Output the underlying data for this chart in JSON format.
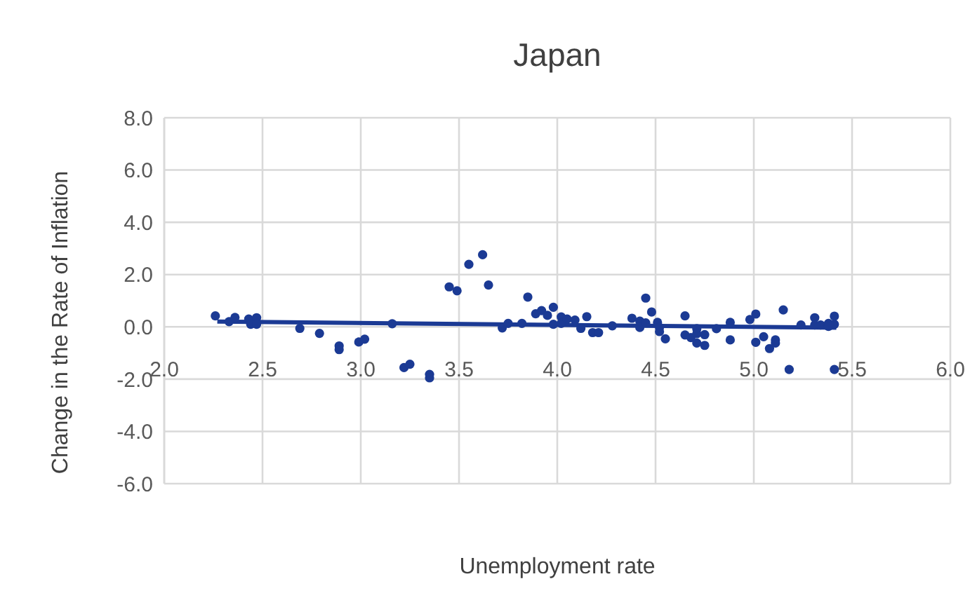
{
  "chart_data": {
    "type": "scatter",
    "title": "Japan",
    "xlabel": "Unemployment rate",
    "ylabel": "Change in the Rate of Inflation",
    "xlim": [
      2.0,
      6.0
    ],
    "xticks": [
      {
        "value": 2.0,
        "label": "2.0"
      },
      {
        "value": 2.5,
        "label": "2.5"
      },
      {
        "value": 3.0,
        "label": "3.0"
      },
      {
        "value": 3.5,
        "label": "3.5"
      },
      {
        "value": 4.0,
        "label": "4.0"
      },
      {
        "value": 4.5,
        "label": "4.5"
      },
      {
        "value": 5.0,
        "label": "5.0"
      },
      {
        "value": 5.5,
        "label": "5.5"
      },
      {
        "value": 6.0,
        "label": "6.0"
      }
    ],
    "ylim": [
      -6.0,
      8.0
    ],
    "yticks": [
      {
        "value": -6.0,
        "label": "-6.0"
      },
      {
        "value": -4.0,
        "label": "-4.0"
      },
      {
        "value": -2.0,
        "label": "-2.0"
      },
      {
        "value": 0.0,
        "label": "0.0"
      },
      {
        "value": 2.0,
        "label": "2.0"
      },
      {
        "value": 4.0,
        "label": "4.0"
      },
      {
        "value": 6.0,
        "label": "6.0"
      },
      {
        "value": 8.0,
        "label": "8.0"
      }
    ],
    "grid": true,
    "legend": false,
    "series": [
      {
        "type": "scatter",
        "marker": "circle",
        "color": "#1b3a94",
        "x": [
          2.26,
          2.33,
          2.36,
          2.43,
          2.44,
          2.47,
          2.47,
          2.69,
          2.79,
          2.89,
          2.89,
          2.99,
          3.02,
          3.16,
          3.22,
          3.25,
          3.35,
          3.35,
          3.45,
          3.49,
          3.55,
          3.62,
          3.65,
          3.72,
          3.75,
          3.82,
          3.85,
          3.89,
          3.92,
          3.95,
          3.98,
          3.98,
          4.02,
          4.02,
          4.05,
          4.09,
          4.12,
          4.15,
          4.18,
          4.21,
          4.28,
          4.38,
          4.42,
          4.42,
          4.45,
          4.45,
          4.48,
          4.51,
          4.52,
          4.52,
          4.55,
          4.65,
          4.65,
          4.68,
          4.71,
          4.71,
          4.71,
          4.75,
          4.75,
          4.81,
          4.88,
          4.88,
          4.98,
          5.01,
          5.01,
          5.05,
          5.08,
          5.11,
          5.11,
          5.15,
          5.18,
          5.24,
          5.31,
          5.31,
          5.34,
          5.38,
          5.38,
          5.41,
          5.41,
          5.41
        ],
        "values": [
          0.42,
          0.2,
          0.36,
          0.3,
          0.1,
          0.35,
          0.1,
          -0.06,
          -0.25,
          -0.73,
          -0.87,
          -0.58,
          -0.47,
          0.12,
          -1.56,
          -1.43,
          -1.82,
          -1.95,
          1.53,
          1.38,
          2.39,
          2.76,
          1.6,
          -0.04,
          0.13,
          0.13,
          1.14,
          0.5,
          0.62,
          0.44,
          0.75,
          0.1,
          0.38,
          0.13,
          0.3,
          0.26,
          -0.06,
          0.39,
          -0.22,
          -0.22,
          0.04,
          0.33,
          0.22,
          -0.02,
          1.1,
          0.15,
          0.57,
          0.17,
          -0.02,
          -0.18,
          -0.46,
          0.42,
          -0.31,
          -0.41,
          -0.07,
          -0.26,
          -0.62,
          -0.3,
          -0.71,
          -0.07,
          0.17,
          -0.5,
          0.28,
          0.49,
          -0.59,
          -0.38,
          -0.83,
          -0.5,
          -0.62,
          0.65,
          -1.63,
          0.07,
          0.35,
          0.07,
          0.07,
          0.13,
          0.02,
          0.41,
          0.1,
          -1.63
        ]
      },
      {
        "type": "line",
        "marker": "none",
        "color": "#1b3a94",
        "x": [
          2.27,
          5.42
        ],
        "values": [
          0.2,
          -0.03
        ]
      }
    ]
  }
}
